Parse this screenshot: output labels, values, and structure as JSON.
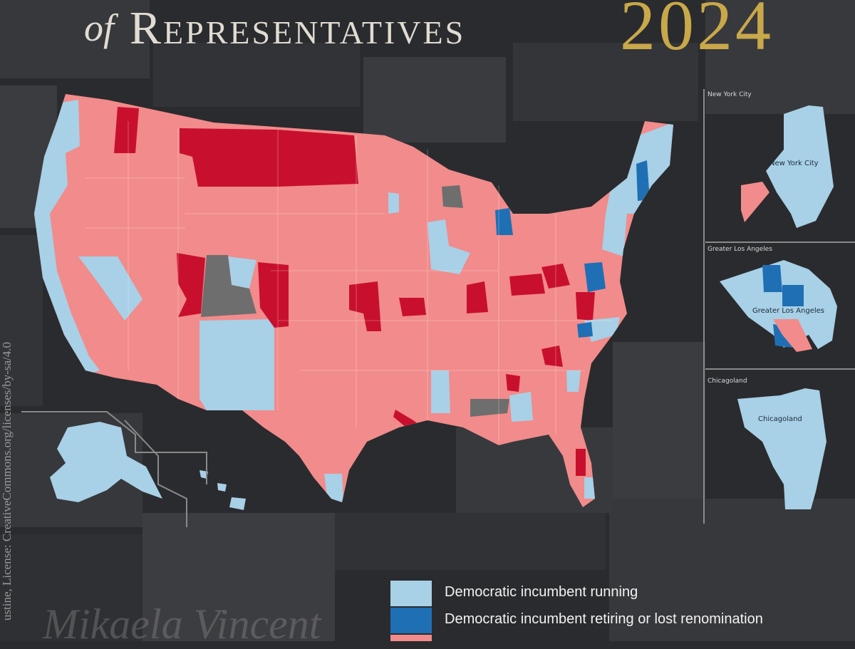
{
  "title": {
    "of": "of",
    "main": "Representatives",
    "year": "2024"
  },
  "insets": [
    {
      "label": "New York City",
      "center_label": "New York City"
    },
    {
      "label": "Greater Los Angeles",
      "center_label": "Greater Los Angeles"
    },
    {
      "label": "Chicagoland",
      "center_label": "Chicagoland"
    }
  ],
  "credit": "ustine,  License: CreativeCommons.org/licenses/by-sa/4.0",
  "signature": "Mikaela Vincent",
  "legend": [
    {
      "label": "Democratic incumbent running",
      "color": "#a8d0e6"
    },
    {
      "label": "Democratic incumbent retiring or lost renomination",
      "color": "#1f6fb4"
    },
    {
      "label": "",
      "color": "#f28b8b"
    }
  ],
  "colors": {
    "dem_running": "#a8d0e6",
    "dem_retiring": "#1f6fb4",
    "rep_running": "#f28b8b",
    "rep_retiring": "#c8102e",
    "vacant": "#6e6e6e",
    "gold": "#c9a84a",
    "background": "#2a2b2e"
  }
}
